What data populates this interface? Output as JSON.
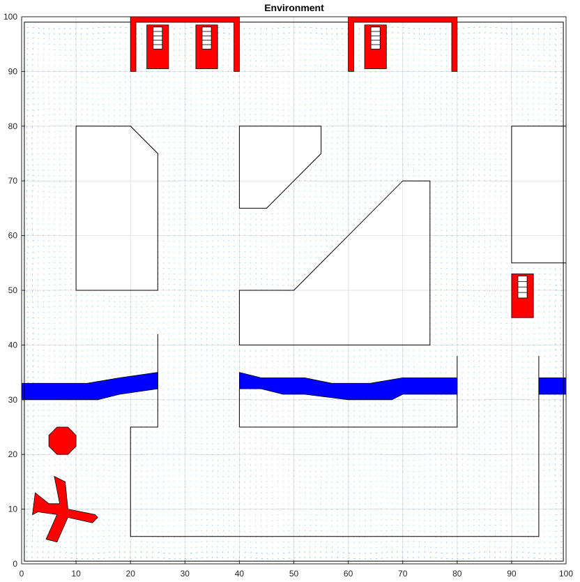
{
  "chart_data": {
    "type": "scatter",
    "title": "Environment",
    "xlabel": "",
    "ylabel": "",
    "xlim": [
      0,
      100
    ],
    "ylim": [
      0,
      100
    ],
    "grid": true,
    "x_ticks": [
      0,
      10,
      20,
      30,
      40,
      50,
      60,
      70,
      80,
      90,
      100
    ],
    "y_ticks": [
      0,
      10,
      20,
      30,
      40,
      50,
      60,
      70,
      80,
      90,
      100
    ],
    "colors": {
      "wall": "#000000",
      "river": "#0000ff",
      "red": "#ff0000",
      "grid": "#e3e3e3",
      "field": "#1f90ff"
    },
    "walls": [
      {
        "name": "left-block",
        "points": [
          [
            10,
            50
          ],
          [
            25,
            50
          ],
          [
            25,
            75
          ],
          [
            20,
            80
          ],
          [
            10,
            80
          ]
        ]
      },
      {
        "name": "upper-middle-block",
        "points": [
          [
            40,
            65
          ],
          [
            45,
            65
          ],
          [
            55,
            75
          ],
          [
            55,
            80
          ],
          [
            40,
            80
          ]
        ]
      },
      {
        "name": "center-block",
        "points": [
          [
            40,
            40
          ],
          [
            75,
            40
          ],
          [
            75,
            70
          ],
          [
            70,
            70
          ],
          [
            50,
            50
          ],
          [
            40,
            50
          ]
        ]
      },
      {
        "name": "right-block",
        "points": [
          [
            90,
            55
          ],
          [
            100,
            55
          ],
          [
            100,
            80
          ],
          [
            90,
            80
          ]
        ]
      },
      {
        "name": "lower-rectangle",
        "points": [
          [
            40,
            25
          ],
          [
            80,
            25
          ],
          [
            80,
            38
          ]
        ],
        "closed": false
      },
      {
        "name": "lower-rectangle-left",
        "points": [
          [
            40,
            32
          ],
          [
            40,
            25
          ]
        ],
        "closed": false
      },
      {
        "name": "u-corridor",
        "points": [
          [
            25,
            42
          ],
          [
            25,
            25
          ],
          [
            20,
            25
          ],
          [
            20,
            5
          ],
          [
            95,
            5
          ],
          [
            95,
            38
          ]
        ],
        "closed": false
      },
      {
        "name": "outer-boundary-inner",
        "points": [
          [
            0.5,
            0.5
          ],
          [
            99.5,
            0.5
          ],
          [
            99.5,
            99
          ],
          [
            0.5,
            99
          ]
        ]
      }
    ],
    "rivers": [
      {
        "name": "river-left",
        "points": [
          [
            0,
            33
          ],
          [
            12,
            33
          ],
          [
            18,
            34
          ],
          [
            25,
            35
          ],
          [
            25,
            32
          ],
          [
            18,
            31
          ],
          [
            14,
            30
          ],
          [
            0,
            30
          ]
        ]
      },
      {
        "name": "river-middle",
        "points": [
          [
            40,
            35
          ],
          [
            44,
            34
          ],
          [
            52,
            34
          ],
          [
            57,
            33
          ],
          [
            64,
            33
          ],
          [
            70,
            34
          ],
          [
            80,
            34
          ],
          [
            80,
            31
          ],
          [
            70,
            31
          ],
          [
            68,
            30
          ],
          [
            60,
            30
          ],
          [
            52,
            31
          ],
          [
            48,
            31
          ],
          [
            44,
            32
          ],
          [
            40,
            32
          ]
        ]
      },
      {
        "name": "river-right",
        "points": [
          [
            95,
            34
          ],
          [
            100,
            34
          ],
          [
            100,
            31
          ],
          [
            95,
            31
          ]
        ]
      }
    ],
    "red_structures": [
      {
        "name": "hangar-left",
        "points": [
          [
            20,
            90
          ],
          [
            20,
            100
          ],
          [
            40,
            100
          ],
          [
            40,
            90
          ],
          [
            39,
            90
          ],
          [
            39,
            99
          ],
          [
            21,
            99
          ],
          [
            21,
            90
          ]
        ]
      },
      {
        "name": "hangar-right",
        "points": [
          [
            60,
            90
          ],
          [
            60,
            100
          ],
          [
            80,
            100
          ],
          [
            80,
            90
          ],
          [
            79,
            90
          ],
          [
            79,
            99
          ],
          [
            61,
            99
          ],
          [
            61,
            90
          ]
        ]
      }
    ],
    "red_pads": [
      {
        "name": "pad-1",
        "x": [
          23,
          27
        ],
        "y": [
          90.5,
          98.5
        ],
        "rungs": 5
      },
      {
        "name": "pad-2",
        "x": [
          32,
          36
        ],
        "y": [
          90.5,
          98.5
        ],
        "rungs": 5
      },
      {
        "name": "pad-3",
        "x": [
          63,
          67
        ],
        "y": [
          90.5,
          98.5
        ],
        "rungs": 5
      },
      {
        "name": "pad-4",
        "x": [
          90,
          94
        ],
        "y": [
          45,
          53
        ],
        "rungs": 4
      }
    ],
    "obstacles": [
      {
        "name": "octagon-obstacle",
        "points": [
          [
            6.5,
            20
          ],
          [
            8.5,
            20
          ],
          [
            10,
            21.5
          ],
          [
            10,
            23.5
          ],
          [
            8.5,
            25
          ],
          [
            6.5,
            25
          ],
          [
            5,
            23.5
          ],
          [
            5,
            21.5
          ]
        ]
      },
      {
        "name": "airplane-obstacle",
        "points": [
          [
            6,
            16
          ],
          [
            8,
            15
          ],
          [
            8.5,
            10
          ],
          [
            13.5,
            9
          ],
          [
            14,
            8.5
          ],
          [
            13,
            7.5
          ],
          [
            8.5,
            8.5
          ],
          [
            6.5,
            4
          ],
          [
            4.5,
            4.5
          ],
          [
            6.5,
            9
          ],
          [
            3,
            9.5
          ],
          [
            2,
            9
          ],
          [
            2.5,
            13
          ],
          [
            5,
            11
          ],
          [
            7,
            11
          ]
        ]
      }
    ],
    "vector_field": {
      "type": "quiver",
      "spacing": 1,
      "color": "#1f90ff"
    }
  }
}
